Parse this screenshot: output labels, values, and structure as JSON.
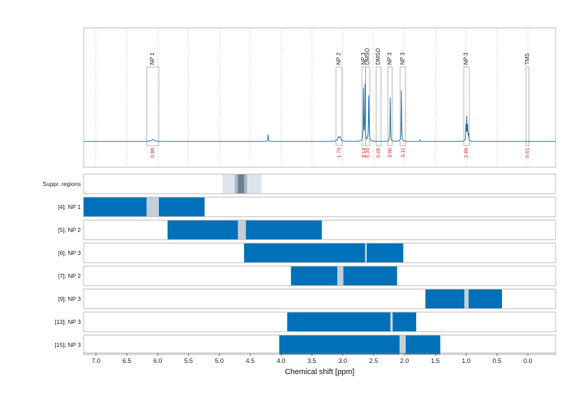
{
  "chart_data": {
    "type": "nmr-spectrum-with-range-bars",
    "xlabel": "Chemical shift [ppm]",
    "xlim": [
      7.2,
      -0.45
    ],
    "x_axis_reversed": true,
    "x_ticks": [
      7.0,
      6.5,
      6.0,
      5.5,
      5.0,
      4.5,
      4.0,
      3.5,
      3.0,
      2.5,
      2.0,
      1.5,
      1.0,
      0.5,
      0.0
    ],
    "x_tick_labels": [
      "7.0",
      "6.5",
      "6.0",
      "5.5",
      "5.0",
      "4.5",
      "4.0",
      "3.5",
      "3.0",
      "2.5",
      "2.0",
      "1.5",
      "1.0",
      "0.5",
      "0.0"
    ],
    "grid": "dotted vertical",
    "colors": {
      "spectrum": "#1f6fa6",
      "bar": "#0070b8",
      "gap": "#c4cfd8",
      "integral_text": "#e0201b",
      "frame": "#aaaaaa",
      "grid": "#c8c8c8"
    },
    "spectrum": {
      "baseline": 0,
      "peaks": [
        {
          "ppm": 6.08,
          "height": 0.025,
          "width": 0.025
        },
        {
          "ppm": 4.21,
          "height": 0.1,
          "width": 0.004
        },
        {
          "ppm": 3.07,
          "height": 0.06,
          "width": 0.016
        },
        {
          "ppm": 3.04,
          "height": 0.05,
          "width": 0.012
        },
        {
          "ppm": 2.665,
          "height": 0.75,
          "width": 0.004
        },
        {
          "ppm": 2.64,
          "height": 0.78,
          "width": 0.004
        },
        {
          "ppm": 2.58,
          "height": 0.66,
          "width": 0.005
        },
        {
          "ppm": 2.23,
          "height": 0.63,
          "width": 0.004
        },
        {
          "ppm": 2.05,
          "height": 0.7,
          "width": 0.004
        },
        {
          "ppm": 1.75,
          "height": 0.02,
          "width": 0.005
        },
        {
          "ppm": 1.005,
          "height": 0.22,
          "width": 0.004
        },
        {
          "ppm": 0.99,
          "height": 0.33,
          "width": 0.004
        },
        {
          "ppm": 0.975,
          "height": 0.22,
          "width": 0.004
        },
        {
          "ppm": 0.96,
          "height": 0.1,
          "width": 0.004
        }
      ]
    },
    "integration_regions": [
      {
        "label": "NP 1",
        "ppm_from": 6.18,
        "ppm_to": 5.98,
        "integral": "0.86"
      },
      {
        "label": "NP 2",
        "ppm_from": 3.11,
        "ppm_to": 3.01,
        "integral": "1.79"
      },
      {
        "label": "NP 3",
        "ppm_from": 2.69,
        "ppm_to": 2.63,
        "integral": "3.14"
      },
      {
        "label": "DMSO",
        "ppm_from": 2.63,
        "ppm_to": 2.56,
        "integral": "5.39"
      },
      {
        "label": "DMSO",
        "ppm_from": 2.46,
        "ppm_to": 2.38,
        "integral": "0.05"
      },
      {
        "label": "NP 3",
        "ppm_from": 2.27,
        "ppm_to": 2.2,
        "integral": "3.00"
      },
      {
        "label": "NP 3",
        "ppm_from": 2.07,
        "ppm_to": 1.98,
        "integral": "3.11"
      },
      {
        "label": "NP 3",
        "ppm_from": 1.04,
        "ppm_to": 0.95,
        "integral": "2.65"
      },
      {
        "label": "TMS",
        "ppm_from": 0.03,
        "ppm_to": -0.02,
        "integral": "0.01"
      }
    ],
    "suppressed_regions": {
      "label": "Suppr. regions",
      "bands": [
        {
          "ppm_from": 4.95,
          "ppm_to": 4.32,
          "color": "#dde5ec"
        },
        {
          "ppm_from": 4.75,
          "ppm_to": 4.55,
          "color": "#a9b8c4"
        },
        {
          "ppm_from": 4.7,
          "ppm_to": 4.6,
          "color": "#6d7f8e"
        }
      ]
    },
    "range_rows": [
      {
        "label": "[4]; NP 1",
        "ppm_from": 7.2,
        "ppm_to": 5.24,
        "gap_from": 6.18,
        "gap_to": 5.98
      },
      {
        "label": "[5]; NP 2",
        "ppm_from": 5.84,
        "ppm_to": 3.34,
        "gap_from": 4.7,
        "gap_to": 4.57
      },
      {
        "label": "[6]; NP 3",
        "ppm_from": 4.6,
        "ppm_to": 2.02,
        "gap_from": 2.64,
        "gap_to": 2.61
      },
      {
        "label": "[7]; NP 2",
        "ppm_from": 3.84,
        "ppm_to": 2.12,
        "gap_from": 3.09,
        "gap_to": 2.99
      },
      {
        "label": "[9]; NP 3",
        "ppm_from": 1.66,
        "ppm_to": 0.42,
        "gap_from": 1.03,
        "gap_to": 0.96
      },
      {
        "label": "[13]; NP 3",
        "ppm_from": 3.9,
        "ppm_to": 1.81,
        "gap_from": 2.23,
        "gap_to": 2.19
      },
      {
        "label": "[15]; NP 3",
        "ppm_from": 4.03,
        "ppm_to": 1.42,
        "gap_from": 2.08,
        "gap_to": 1.98
      }
    ]
  }
}
